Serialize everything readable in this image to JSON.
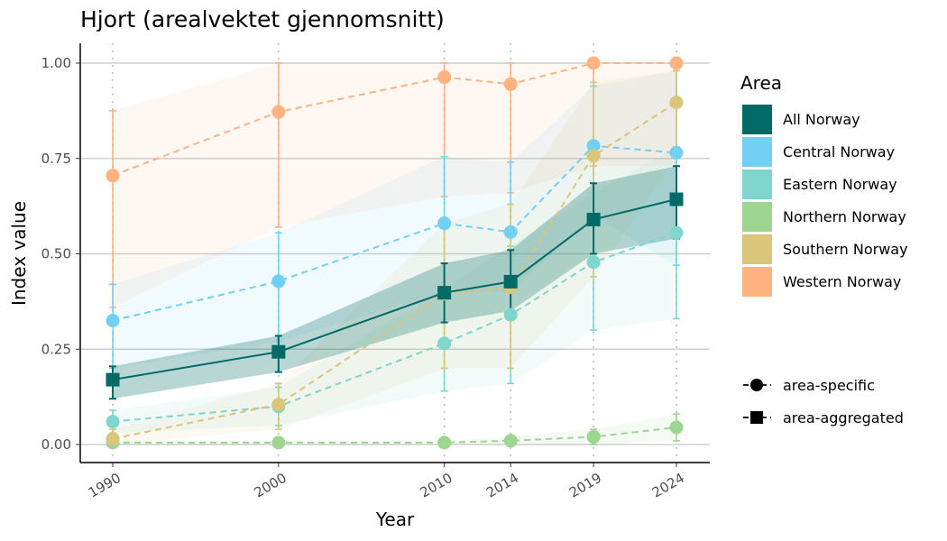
{
  "chart_data": {
    "type": "line",
    "title": "Hjort (arealvektet gjennomsnitt)",
    "xlabel": "Year",
    "ylabel": "Index value",
    "x": [
      1990,
      2000,
      2010,
      2014,
      2019,
      2024
    ],
    "xlim": [
      1990,
      2024
    ],
    "ylim": [
      0,
      1
    ],
    "y_ticks": [
      0.0,
      0.25,
      0.5,
      0.75,
      1.0
    ],
    "y_tick_labels": [
      "0.00",
      "0.25",
      "0.50",
      "0.75",
      "1.00"
    ],
    "x_tick_labels": [
      "1990",
      "2000",
      "2010",
      "2014",
      "2019",
      "2024"
    ],
    "grid": "horizontal major",
    "legend_position": "right",
    "legend": {
      "area_title": "Area",
      "shape_items": [
        "area-specific",
        "area-aggregated"
      ]
    },
    "series": [
      {
        "name": "Western Norway",
        "color": "#FFB380",
        "shape": "circle",
        "line": "dashed",
        "values": [
          0.705,
          0.872,
          0.963,
          0.945,
          1.0,
          1.0
        ],
        "lower": [
          0.36,
          0.57,
          0.65,
          0.66,
          0.73,
          0.73
        ],
        "upper": [
          0.875,
          1.0,
          1.0,
          1.0,
          1.0,
          1.0
        ]
      },
      {
        "name": "Central Norway",
        "color": "#72D0F5",
        "shape": "circle",
        "line": "dashed",
        "values": [
          0.325,
          0.428,
          0.58,
          0.557,
          0.783,
          0.765
        ],
        "lower": [
          0.2,
          0.27,
          0.4,
          0.4,
          0.6,
          0.47
        ],
        "upper": [
          0.42,
          0.555,
          0.755,
          0.74,
          0.94,
          0.98
        ]
      },
      {
        "name": "Eastern Norway",
        "color": "#7ED6CF",
        "shape": "circle",
        "line": "dashed",
        "values": [
          0.06,
          0.1,
          0.265,
          0.34,
          0.478,
          0.555
        ],
        "lower": [
          0.03,
          0.05,
          0.14,
          0.16,
          0.3,
          0.33
        ],
        "upper": [
          0.09,
          0.15,
          0.41,
          0.52,
          0.66,
          0.78
        ]
      },
      {
        "name": "Northern Norway",
        "color": "#9DD591",
        "shape": "circle",
        "line": "dashed",
        "values": [
          0.005,
          0.005,
          0.005,
          0.01,
          0.02,
          0.045
        ],
        "lower": [
          0.0,
          0.0,
          0.0,
          0.0,
          0.0,
          0.01
        ],
        "upper": [
          0.01,
          0.01,
          0.01,
          0.02,
          0.04,
          0.08
        ]
      },
      {
        "name": "Southern Norway",
        "color": "#D9C67A",
        "shape": "circle",
        "line": "dashed",
        "values": [
          0.015,
          0.105,
          0.395,
          0.412,
          0.757,
          0.897
        ],
        "lower": [
          0.0,
          0.04,
          0.2,
          0.2,
          0.44,
          0.75
        ],
        "upper": [
          0.04,
          0.16,
          0.58,
          0.63,
          0.95,
          0.98
        ]
      },
      {
        "name": "All Norway",
        "color": "#006A66",
        "shape": "square",
        "line": "solid",
        "values": [
          0.17,
          0.243,
          0.398,
          0.427,
          0.59,
          0.643
        ],
        "lower": [
          0.12,
          0.19,
          0.32,
          0.35,
          0.5,
          0.54
        ],
        "upper": [
          0.205,
          0.285,
          0.475,
          0.51,
          0.685,
          0.73
        ]
      }
    ],
    "legend_order": [
      "All Norway",
      "Central Norway",
      "Eastern Norway",
      "Northern Norway",
      "Southern Norway",
      "Western Norway"
    ]
  }
}
